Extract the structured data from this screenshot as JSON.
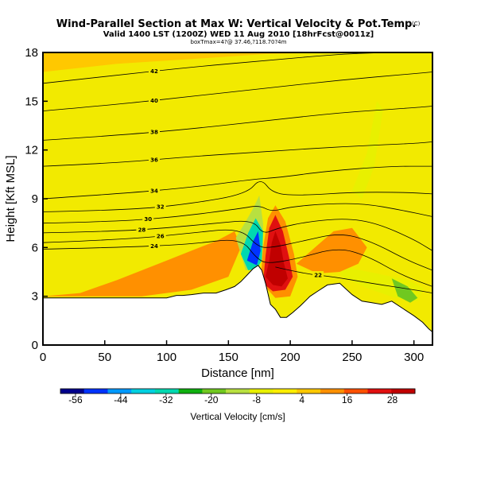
{
  "header": {
    "title": "Wind-Parallel Section at Max W: Vertical Velocity & Pot.Temp.",
    "copyright": "(C)",
    "subtitle": "Valid 1400 LST (1200Z) WED 11 Aug 2010 [18hrFcst@0011z]",
    "subtitle2": "boxTmax=4?@ 37.46,?118.70?4m"
  },
  "chart_data": {
    "type": "heatmap",
    "title": "Wind-Parallel Section at Max W: Vertical Velocity & Pot.Temp.",
    "xlabel": "Distance [nm]",
    "ylabel": "Height [Kft MSL]",
    "xlim": [
      0,
      315
    ],
    "ylim": [
      0,
      18
    ],
    "xticks": [
      "0",
      "50",
      "100",
      "150",
      "200",
      "250",
      "300"
    ],
    "yticks": [
      "0",
      "3",
      "6",
      "9",
      "12",
      "15",
      "18"
    ],
    "terrain": [
      [
        0,
        2.9
      ],
      [
        10,
        2.9
      ],
      [
        20,
        2.9
      ],
      [
        30,
        2.9
      ],
      [
        40,
        2.9
      ],
      [
        50,
        2.9
      ],
      [
        60,
        2.9
      ],
      [
        70,
        2.9
      ],
      [
        80,
        2.9
      ],
      [
        90,
        2.9
      ],
      [
        100,
        2.9
      ],
      [
        108,
        3.05
      ],
      [
        113,
        3.05
      ],
      [
        120,
        3.1
      ],
      [
        130,
        3.2
      ],
      [
        140,
        3.2
      ],
      [
        148,
        3.4
      ],
      [
        155,
        3.6
      ],
      [
        160,
        3.9
      ],
      [
        165,
        4.3
      ],
      [
        170,
        4.7
      ],
      [
        174,
        4.9
      ],
      [
        177,
        4.6
      ],
      [
        180,
        3.8
      ],
      [
        184,
        2.5
      ],
      [
        188,
        2.2
      ],
      [
        192,
        1.7
      ],
      [
        197,
        1.7
      ],
      [
        202,
        2.0
      ],
      [
        208,
        2.4
      ],
      [
        212,
        2.7
      ],
      [
        216,
        3.0
      ],
      [
        222,
        3.3
      ],
      [
        230,
        3.7
      ],
      [
        240,
        3.8
      ],
      [
        250,
        3.1
      ],
      [
        258,
        2.7
      ],
      [
        266,
        2.6
      ],
      [
        274,
        2.5
      ],
      [
        282,
        2.7
      ],
      [
        292,
        2.2
      ],
      [
        300,
        1.8
      ],
      [
        307,
        1.4
      ],
      [
        312,
        1.0
      ],
      [
        315,
        0.8
      ]
    ],
    "theta_contours": [
      {
        "label": "22",
        "points": [
          [
            188,
            4.8
          ],
          [
            210,
            4.4
          ],
          [
            235,
            4.2
          ],
          [
            265,
            3.8
          ],
          [
            300,
            3.4
          ],
          [
            315,
            3.2
          ]
        ]
      },
      {
        "label": "24",
        "points": [
          [
            0,
            5.9
          ],
          [
            60,
            6.0
          ],
          [
            120,
            6.2
          ],
          [
            160,
            6.6
          ],
          [
            173,
            5.3
          ],
          [
            182,
            5.0
          ],
          [
            205,
            5.3
          ],
          [
            238,
            6.0
          ],
          [
            262,
            5.5
          ],
          [
            290,
            4.3
          ],
          [
            315,
            3.6
          ]
        ]
      },
      {
        "label": "26",
        "points": [
          [
            0,
            6.3
          ],
          [
            70,
            6.5
          ],
          [
            120,
            6.9
          ],
          [
            160,
            7.2
          ],
          [
            174,
            6.0
          ],
          [
            186,
            6.0
          ],
          [
            210,
            6.4
          ],
          [
            240,
            6.9
          ],
          [
            265,
            6.4
          ],
          [
            295,
            5.2
          ],
          [
            315,
            4.6
          ]
        ]
      },
      {
        "label": "28",
        "points": [
          [
            0,
            6.9
          ],
          [
            60,
            7.0
          ],
          [
            100,
            7.2
          ],
          [
            140,
            7.5
          ],
          [
            170,
            7.7
          ],
          [
            178,
            6.8
          ],
          [
            190,
            7.2
          ],
          [
            215,
            7.6
          ],
          [
            245,
            7.8
          ],
          [
            270,
            7.5
          ],
          [
            300,
            6.5
          ],
          [
            315,
            5.8
          ]
        ]
      },
      {
        "label": "30",
        "points": [
          [
            0,
            7.5
          ],
          [
            60,
            7.6
          ],
          [
            110,
            7.9
          ],
          [
            160,
            8.4
          ],
          [
            175,
            8.6
          ],
          [
            185,
            8.2
          ],
          [
            200,
            8.5
          ],
          [
            230,
            8.7
          ],
          [
            260,
            8.7
          ],
          [
            290,
            8.3
          ],
          [
            315,
            7.9
          ]
        ]
      },
      {
        "label": "32",
        "points": [
          [
            0,
            8.2
          ],
          [
            70,
            8.3
          ],
          [
            120,
            8.7
          ],
          [
            165,
            9.3
          ],
          [
            176,
            10.3
          ],
          [
            186,
            9.3
          ],
          [
            210,
            9.2
          ],
          [
            250,
            9.4
          ],
          [
            290,
            9.4
          ],
          [
            315,
            9.3
          ]
        ]
      },
      {
        "label": "34",
        "points": [
          [
            0,
            9.0
          ],
          [
            60,
            9.3
          ],
          [
            120,
            9.7
          ],
          [
            170,
            10.2
          ],
          [
            190,
            10.3
          ],
          [
            230,
            10.7
          ],
          [
            280,
            11.0
          ],
          [
            315,
            11.0
          ]
        ]
      },
      {
        "label": "36",
        "points": [
          [
            0,
            11.0
          ],
          [
            60,
            11.2
          ],
          [
            120,
            11.6
          ],
          [
            180,
            11.9
          ],
          [
            240,
            12.2
          ],
          [
            300,
            12.4
          ],
          [
            315,
            12.5
          ]
        ]
      },
      {
        "label": "38",
        "points": [
          [
            0,
            12.6
          ],
          [
            60,
            12.9
          ],
          [
            120,
            13.3
          ],
          [
            180,
            13.8
          ],
          [
            240,
            14.3
          ],
          [
            300,
            14.6
          ],
          [
            315,
            14.7
          ]
        ]
      },
      {
        "label": "40",
        "points": [
          [
            0,
            14.4
          ],
          [
            60,
            14.8
          ],
          [
            120,
            15.3
          ],
          [
            180,
            15.8
          ],
          [
            240,
            16.3
          ],
          [
            300,
            16.7
          ],
          [
            315,
            16.8
          ]
        ]
      },
      {
        "label": "42",
        "points": [
          [
            0,
            16.1
          ],
          [
            60,
            16.6
          ],
          [
            120,
            17.1
          ],
          [
            180,
            17.5
          ],
          [
            240,
            17.9
          ],
          [
            280,
            18.0
          ]
        ]
      }
    ],
    "w_features": [
      {
        "name": "upward-core",
        "w": 34,
        "points": [
          [
            180,
            4.2
          ],
          [
            183,
            5.2
          ],
          [
            185,
            6.3
          ],
          [
            188,
            7.0
          ],
          [
            192,
            6.2
          ],
          [
            195,
            5.0
          ],
          [
            198,
            4.1
          ],
          [
            193,
            3.6
          ],
          [
            186,
            3.7
          ]
        ]
      },
      {
        "name": "upward-mid",
        "w": 22,
        "points": [
          [
            178,
            3.8
          ],
          [
            180,
            5.5
          ],
          [
            183,
            7.2
          ],
          [
            188,
            8.0
          ],
          [
            194,
            7.0
          ],
          [
            199,
            5.4
          ],
          [
            202,
            4.2
          ],
          [
            196,
            3.4
          ],
          [
            186,
            3.3
          ]
        ]
      },
      {
        "name": "upward-outer",
        "w": 12,
        "points": [
          [
            176,
            3.9
          ],
          [
            178,
            6.0
          ],
          [
            182,
            7.8
          ],
          [
            188,
            8.6
          ],
          [
            196,
            7.6
          ],
          [
            203,
            5.6
          ],
          [
            206,
            4.2
          ],
          [
            200,
            3.0
          ],
          [
            188,
            2.9
          ]
        ]
      },
      {
        "name": "downward-core",
        "w": -50,
        "points": [
          [
            165,
            5.2
          ],
          [
            170,
            6.4
          ],
          [
            174,
            7.0
          ],
          [
            176,
            5.8
          ],
          [
            173,
            4.9
          ]
        ]
      },
      {
        "name": "downward-mid",
        "w": -30,
        "points": [
          [
            160,
            5.6
          ],
          [
            166,
            6.9
          ],
          [
            172,
            7.8
          ],
          [
            178,
            7.0
          ],
          [
            177,
            5.2
          ],
          [
            173,
            4.7
          ],
          [
            166,
            4.6
          ]
        ]
      },
      {
        "name": "downward-outer",
        "w": -12,
        "points": [
          [
            156,
            6.6
          ],
          [
            164,
            7.6
          ],
          [
            170,
            8.4
          ],
          [
            175,
            9.2
          ],
          [
            178,
            7.5
          ],
          [
            178,
            6.0
          ],
          [
            173,
            4.8
          ],
          [
            164,
            4.6
          ]
        ]
      },
      {
        "name": "lee-descent-1",
        "w": -8,
        "points": [
          [
            232,
            5.4
          ],
          [
            250,
            4.7
          ],
          [
            270,
            4.4
          ],
          [
            295,
            4.0
          ],
          [
            308,
            3.5
          ],
          [
            303,
            2.7
          ],
          [
            285,
            2.9
          ],
          [
            262,
            3.5
          ],
          [
            242,
            4.2
          ]
        ]
      },
      {
        "name": "lee-descent-2",
        "w": -20,
        "points": [
          [
            282,
            4.1
          ],
          [
            295,
            3.6
          ],
          [
            303,
            2.9
          ],
          [
            297,
            2.6
          ],
          [
            287,
            3.0
          ]
        ]
      },
      {
        "name": "lee-descent-3",
        "w": -6,
        "points": [
          [
            250,
            9.5
          ],
          [
            262,
            11.8
          ],
          [
            270,
            15.0
          ],
          [
            275,
            14.5
          ],
          [
            268,
            11.0
          ],
          [
            258,
            9.0
          ]
        ]
      },
      {
        "name": "orange-west",
        "w": 10,
        "points": [
          [
            0,
            3.0
          ],
          [
            30,
            3.2
          ],
          [
            60,
            4.0
          ],
          [
            100,
            5.2
          ],
          [
            120,
            5.8
          ],
          [
            140,
            6.4
          ],
          [
            155,
            7.0
          ],
          [
            160,
            6.0
          ],
          [
            150,
            4.2
          ],
          [
            120,
            3.4
          ],
          [
            80,
            3.0
          ]
        ]
      },
      {
        "name": "orange-lee",
        "w": 10,
        "points": [
          [
            205,
            5.0
          ],
          [
            220,
            6.0
          ],
          [
            235,
            7.0
          ],
          [
            250,
            7.2
          ],
          [
            262,
            6.0
          ],
          [
            255,
            5.0
          ],
          [
            240,
            4.5
          ],
          [
            222,
            4.4
          ]
        ]
      },
      {
        "name": "orange-upper",
        "w": 8,
        "points": [
          [
            0,
            16.8
          ],
          [
            60,
            17.3
          ],
          [
            120,
            17.6
          ],
          [
            180,
            17.9
          ],
          [
            240,
            18.0
          ],
          [
            0,
            18.0
          ]
        ]
      }
    ],
    "colorbar": {
      "label": "Vertical Velocity [cm/s]",
      "ticks": [
        "-56",
        "-44",
        "-32",
        "-20",
        "-8",
        "4",
        "16",
        "28"
      ],
      "tick_values": [
        -56,
        -44,
        -32,
        -20,
        -8,
        4,
        16,
        28
      ],
      "range": [
        -60,
        34
      ],
      "colors": [
        "#00008b",
        "#0033ff",
        "#0099ff",
        "#00d0e0",
        "#00d8b0",
        "#10b010",
        "#70c820",
        "#b8e040",
        "#e8f000",
        "#ffee00",
        "#ffc800",
        "#ff9000",
        "#ff5000",
        "#e01010",
        "#c00000"
      ]
    }
  }
}
